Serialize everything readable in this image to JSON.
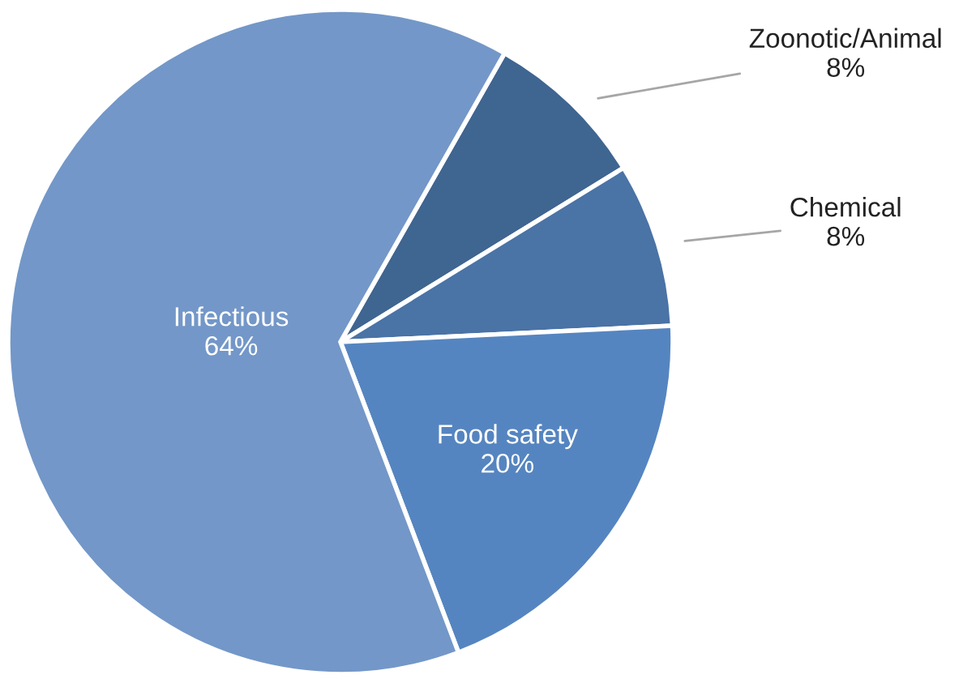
{
  "chart_data": {
    "type": "pie",
    "categories": [
      "Zoonotic/Animal",
      "Chemical",
      "Food safety",
      "Infectious"
    ],
    "values": [
      8,
      8,
      20,
      64
    ],
    "colors": [
      "#3f6591",
      "#4a73a6",
      "#5585c0",
      "#7397c8"
    ],
    "value_labels": [
      "8%",
      "8%",
      "20%",
      "64%"
    ],
    "legend": false
  }
}
